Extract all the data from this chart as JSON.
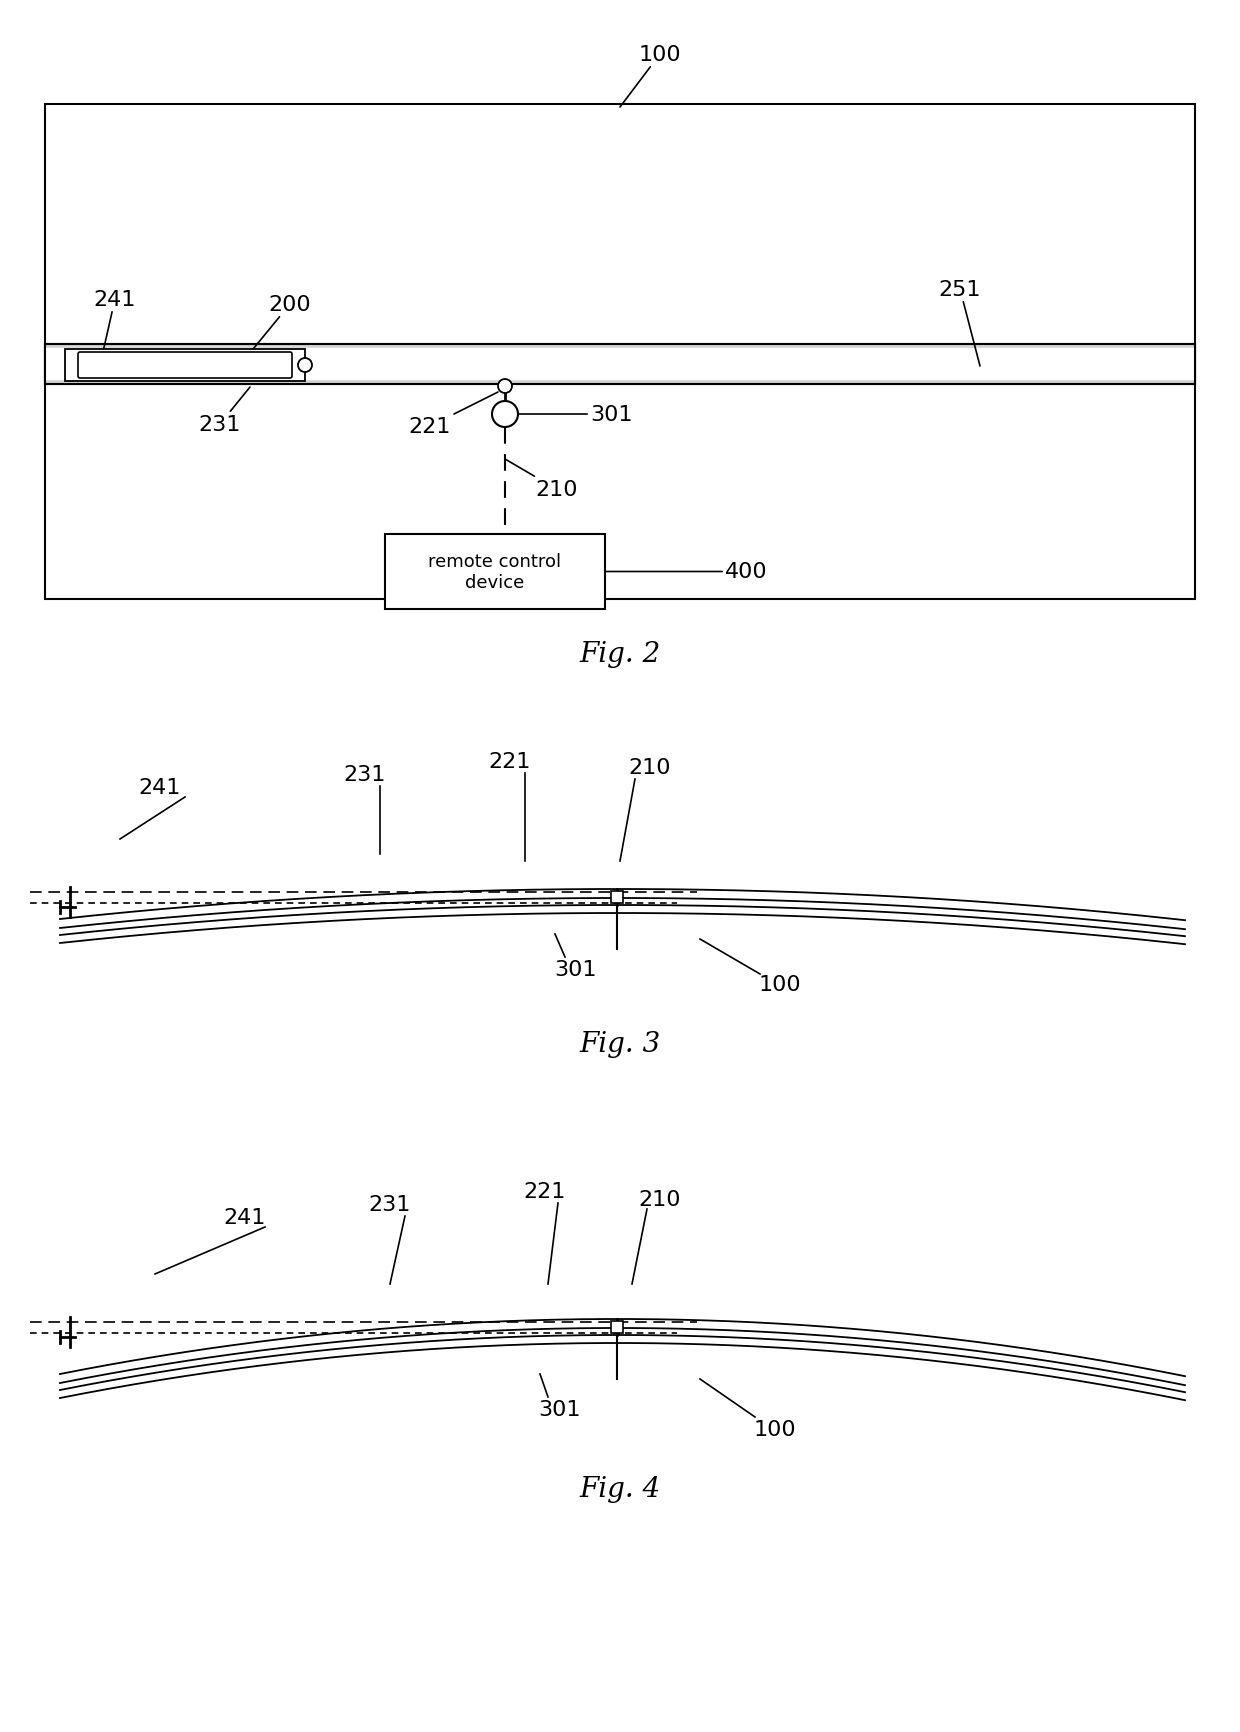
{
  "bg_color": "#ffffff",
  "fig_width": 12.4,
  "fig_height": 17.33,
  "remote_text": "remote control\ndevice",
  "fig2_caption": "Fig. 2",
  "fig3_caption": "Fig. 3",
  "fig4_caption": "Fig. 4",
  "label_fontsize": 16,
  "caption_fontsize": 20
}
